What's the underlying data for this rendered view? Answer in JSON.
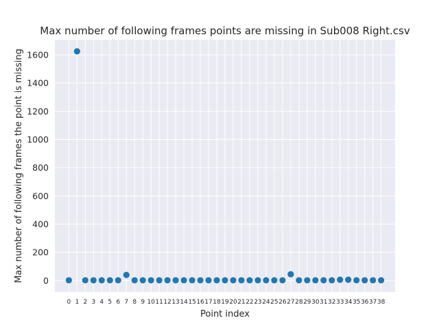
{
  "chart_data": {
    "type": "scatter",
    "title": "Max number of following frames points are missing in Sub008 Right.csv",
    "xlabel": "Point index",
    "ylabel": "Max number of following frames the point is missing",
    "x": [
      0,
      1,
      2,
      3,
      4,
      5,
      6,
      7,
      8,
      9,
      10,
      11,
      12,
      13,
      14,
      15,
      16,
      17,
      18,
      19,
      20,
      21,
      22,
      23,
      24,
      25,
      26,
      27,
      28,
      29,
      30,
      31,
      32,
      33,
      34,
      35,
      36,
      37,
      38
    ],
    "y": [
      2,
      1625,
      2,
      2,
      2,
      2,
      2,
      40,
      2,
      2,
      2,
      2,
      2,
      2,
      2,
      2,
      2,
      2,
      2,
      2,
      2,
      2,
      2,
      2,
      2,
      2,
      2,
      45,
      2,
      2,
      2,
      2,
      2,
      6,
      6,
      2,
      2,
      2,
      2
    ],
    "x_ticks": [
      "0",
      "1",
      "2",
      "3",
      "4",
      "5",
      "6",
      "7",
      "8",
      "9",
      "10",
      "11",
      "12",
      "13",
      "14",
      "15",
      "16",
      "17",
      "18",
      "19",
      "20",
      "21",
      "22",
      "23",
      "24",
      "25",
      "26",
      "27",
      "28",
      "29",
      "30",
      "31",
      "32",
      "33",
      "34",
      "35",
      "36",
      "37",
      "38"
    ],
    "y_ticks": [
      "0",
      "200",
      "400",
      "600",
      "800",
      "1000",
      "1200",
      "1400",
      "1600"
    ],
    "xlim": [
      -1.7,
      39.7
    ],
    "ylim": [
      -81,
      1707
    ],
    "grid": true,
    "background": "#eaeaf2",
    "point_color": "#1f77b4"
  }
}
